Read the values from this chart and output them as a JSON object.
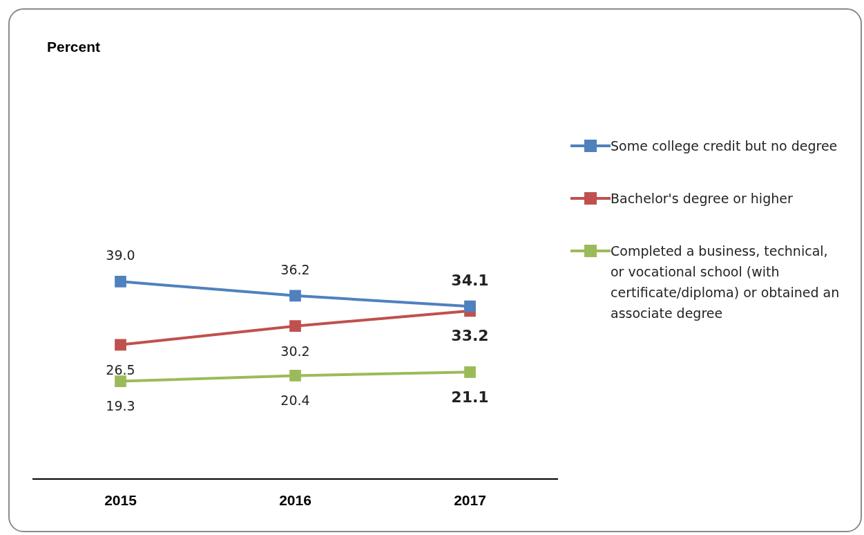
{
  "chart_data": {
    "type": "line",
    "annotations": [
      "Percent"
    ],
    "categories": [
      "2015",
      "2016",
      "2017"
    ],
    "series": [
      {
        "name": "Some college credit but no degree",
        "color": "#4f81bd",
        "values": [
          39.0,
          36.2,
          34.1
        ],
        "value_labels": [
          "39.0",
          "36.2",
          "34.1"
        ]
      },
      {
        "name": "Bachelor's degree or higher",
        "color": "#c0504d",
        "values": [
          26.5,
          30.2,
          33.2
        ],
        "value_labels": [
          "26.5",
          "30.2",
          "33.2"
        ]
      },
      {
        "name": "Completed a business, technical, or vocational school (with certificate/diploma) or obtained an associate degree",
        "color": "#9bbb59",
        "values": [
          19.3,
          20.4,
          21.1
        ],
        "value_labels": [
          "19.3",
          "20.4",
          "21.1"
        ]
      }
    ],
    "tick_labels": "x",
    "grid": false,
    "legend": "right",
    "marker": "square",
    "line_style": "solid"
  }
}
